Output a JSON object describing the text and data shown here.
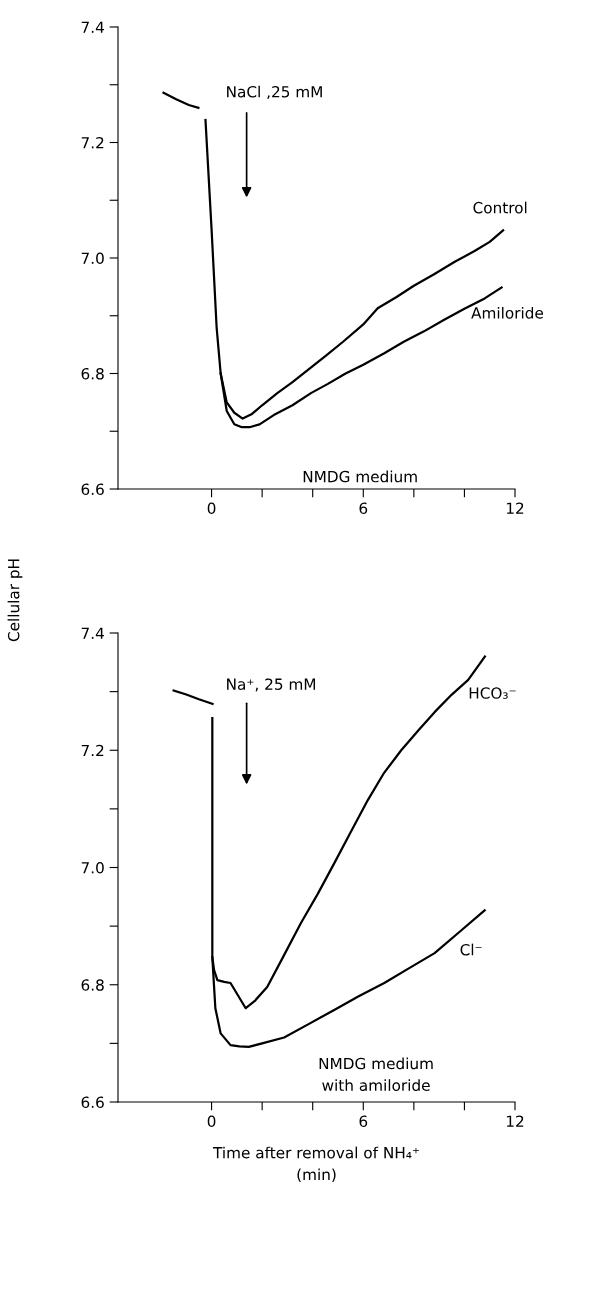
{
  "chart_data": [
    {
      "type": "line",
      "ylabel": "Cellular pH",
      "xlim": [
        -3.7,
        12
      ],
      "ylim": [
        6.6,
        7.4
      ],
      "xticks": [
        0,
        {
          "value": 2,
          "label": null
        },
        {
          "value": 4,
          "label": null
        },
        6,
        {
          "value": 8,
          "label": null
        },
        {
          "value": 10,
          "label": null
        },
        12
      ],
      "yticks": [
        6.6,
        {
          "value": 6.7,
          "label": null
        },
        6.8,
        {
          "value": 6.9,
          "label": null
        },
        {
          "value": 7.0,
          "label": "7.0"
        },
        {
          "value": 7.1,
          "label": null
        },
        7.2,
        {
          "value": 7.3,
          "label": null
        },
        7.4
      ],
      "grid": false,
      "legend": false,
      "marker": "none",
      "line_style": "solid",
      "series": [
        {
          "color": "#000000",
          "x": [
            -1.9,
            -1.4,
            -0.9,
            -0.52
          ],
          "values": [
            7.286,
            7.275,
            7.265,
            7.26
          ]
        },
        {
          "name": "Control",
          "color": "#000000",
          "x": [
            -0.24,
            0.0,
            0.2,
            0.36,
            0.6,
            0.9,
            1.23,
            1.6,
            2.0,
            2.6,
            3.2,
            3.8,
            4.5,
            5.2,
            6.0,
            6.57,
            7.3,
            8.0,
            8.8,
            9.6,
            10.4,
            11.0,
            11.53
          ],
          "values": [
            7.239,
            7.05,
            6.88,
            6.8,
            6.75,
            6.732,
            6.722,
            6.73,
            6.745,
            6.766,
            6.785,
            6.806,
            6.83,
            6.855,
            6.885,
            6.913,
            6.932,
            6.952,
            6.972,
            6.993,
            7.012,
            7.028,
            7.048
          ]
        },
        {
          "name": "Amiloride",
          "color": "#000000",
          "x": [
            0.36,
            0.6,
            0.9,
            1.2,
            1.5,
            1.9,
            2.46,
            3.2,
            3.93,
            4.6,
            5.3,
            6.0,
            6.83,
            7.6,
            8.4,
            9.2,
            10.0,
            10.8,
            11.47
          ],
          "values": [
            6.8,
            6.735,
            6.712,
            6.707,
            6.707,
            6.712,
            6.728,
            6.745,
            6.766,
            6.782,
            6.8,
            6.815,
            6.835,
            6.855,
            6.873,
            6.893,
            6.912,
            6.93,
            6.949
          ]
        }
      ],
      "annotations": [
        "NaCl ,25 mM",
        "NMDG medium"
      ]
    },
    {
      "type": "line",
      "xlabel": "Time after removal of NH₄⁺\n(min)",
      "xlim": [
        -3.7,
        12
      ],
      "ylim": [
        6.6,
        7.4
      ],
      "xticks": [
        0,
        {
          "value": 2,
          "label": null
        },
        {
          "value": 4,
          "label": null
        },
        6,
        {
          "value": 8,
          "label": null
        },
        {
          "value": 10,
          "label": null
        },
        12
      ],
      "yticks": [
        6.6,
        {
          "value": 6.7,
          "label": null
        },
        6.8,
        {
          "value": 6.9,
          "label": null
        },
        {
          "value": 7.0,
          "label": "7.0"
        },
        {
          "value": 7.1,
          "label": null
        },
        7.2,
        {
          "value": 7.3,
          "label": null
        },
        7.4
      ],
      "grid": false,
      "legend": false,
      "marker": "none",
      "line_style": "solid",
      "series": [
        {
          "color": "#000000",
          "x": [
            -1.5,
            -1.0,
            -0.5,
            0.04
          ],
          "values": [
            7.302,
            7.295,
            7.287,
            7.279
          ]
        },
        {
          "name": "HCO₃⁻",
          "color": "#000000",
          "x": [
            0.03,
            0.03,
            0.1,
            0.23,
            0.5,
            0.75,
            1.0,
            1.35,
            1.7,
            2.2,
            2.8,
            3.53,
            4.2,
            4.85,
            5.5,
            6.18,
            6.8,
            7.5,
            8.2,
            8.82,
            9.5,
            10.15,
            10.81
          ],
          "values": [
            7.255,
            6.847,
            6.825,
            6.808,
            6.805,
            6.803,
            6.785,
            6.76,
            6.772,
            6.796,
            6.845,
            6.905,
            6.955,
            7.007,
            7.06,
            7.115,
            7.16,
            7.2,
            7.235,
            7.265,
            7.295,
            7.32,
            7.36
          ]
        },
        {
          "name": "Cl⁻",
          "color": "#000000",
          "x": [
            0.03,
            0.15,
            0.36,
            0.75,
            1.1,
            1.47,
            2.0,
            2.87,
            3.8,
            4.85,
            5.8,
            6.83,
            7.8,
            8.82,
            9.8,
            10.8
          ],
          "values": [
            6.847,
            6.76,
            6.717,
            6.697,
            6.695,
            6.694,
            6.7,
            6.71,
            6.732,
            6.757,
            6.78,
            6.803,
            6.828,
            6.854,
            6.89,
            6.927
          ]
        }
      ],
      "annotations": [
        "Na⁺, 25 mM",
        "NMDG medium\nwith amiloride"
      ]
    }
  ]
}
